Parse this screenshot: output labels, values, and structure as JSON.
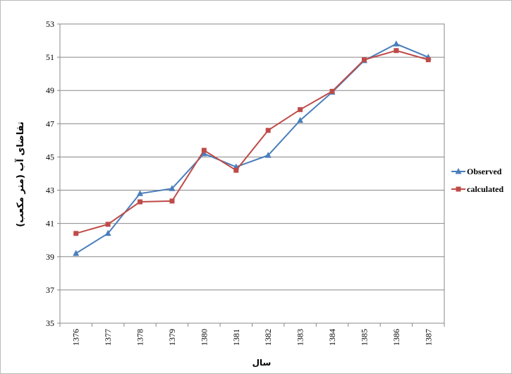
{
  "chart_data": {
    "type": "line",
    "x_label": "سال",
    "y_label": "تقاضای آب (متر مکعب)",
    "categories": [
      "1376",
      "1377",
      "1378",
      "1379",
      "1380",
      "1381",
      "1382",
      "1383",
      "1384",
      "1385",
      "1386",
      "1387"
    ],
    "series": [
      {
        "name": "Observed",
        "color": "#4a7ebb",
        "marker": "triangle",
        "values": [
          39.2,
          40.4,
          42.8,
          43.1,
          45.2,
          44.4,
          45.1,
          47.2,
          48.9,
          50.8,
          51.8,
          51.0
        ]
      },
      {
        "name": "calculated",
        "color": "#be4b48",
        "marker": "square",
        "values": [
          40.4,
          40.95,
          42.3,
          42.35,
          45.4,
          44.2,
          46.6,
          47.85,
          48.95,
          50.85,
          51.4,
          50.85
        ]
      }
    ],
    "ylim": [
      35,
      53
    ],
    "yticks": [
      35,
      37,
      39,
      41,
      43,
      45,
      47,
      49,
      51,
      53
    ],
    "grid": true,
    "legend": "right"
  }
}
